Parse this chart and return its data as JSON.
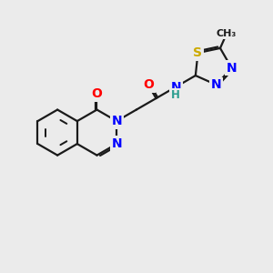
{
  "background_color": "#ebebeb",
  "bond_color": "#1a1a1a",
  "bond_width": 1.6,
  "atom_colors": {
    "N": "#0000ff",
    "O": "#ff0000",
    "S": "#ccaa00",
    "C": "#1a1a1a",
    "H": "#2a9d8f"
  },
  "font_size": 9.5
}
